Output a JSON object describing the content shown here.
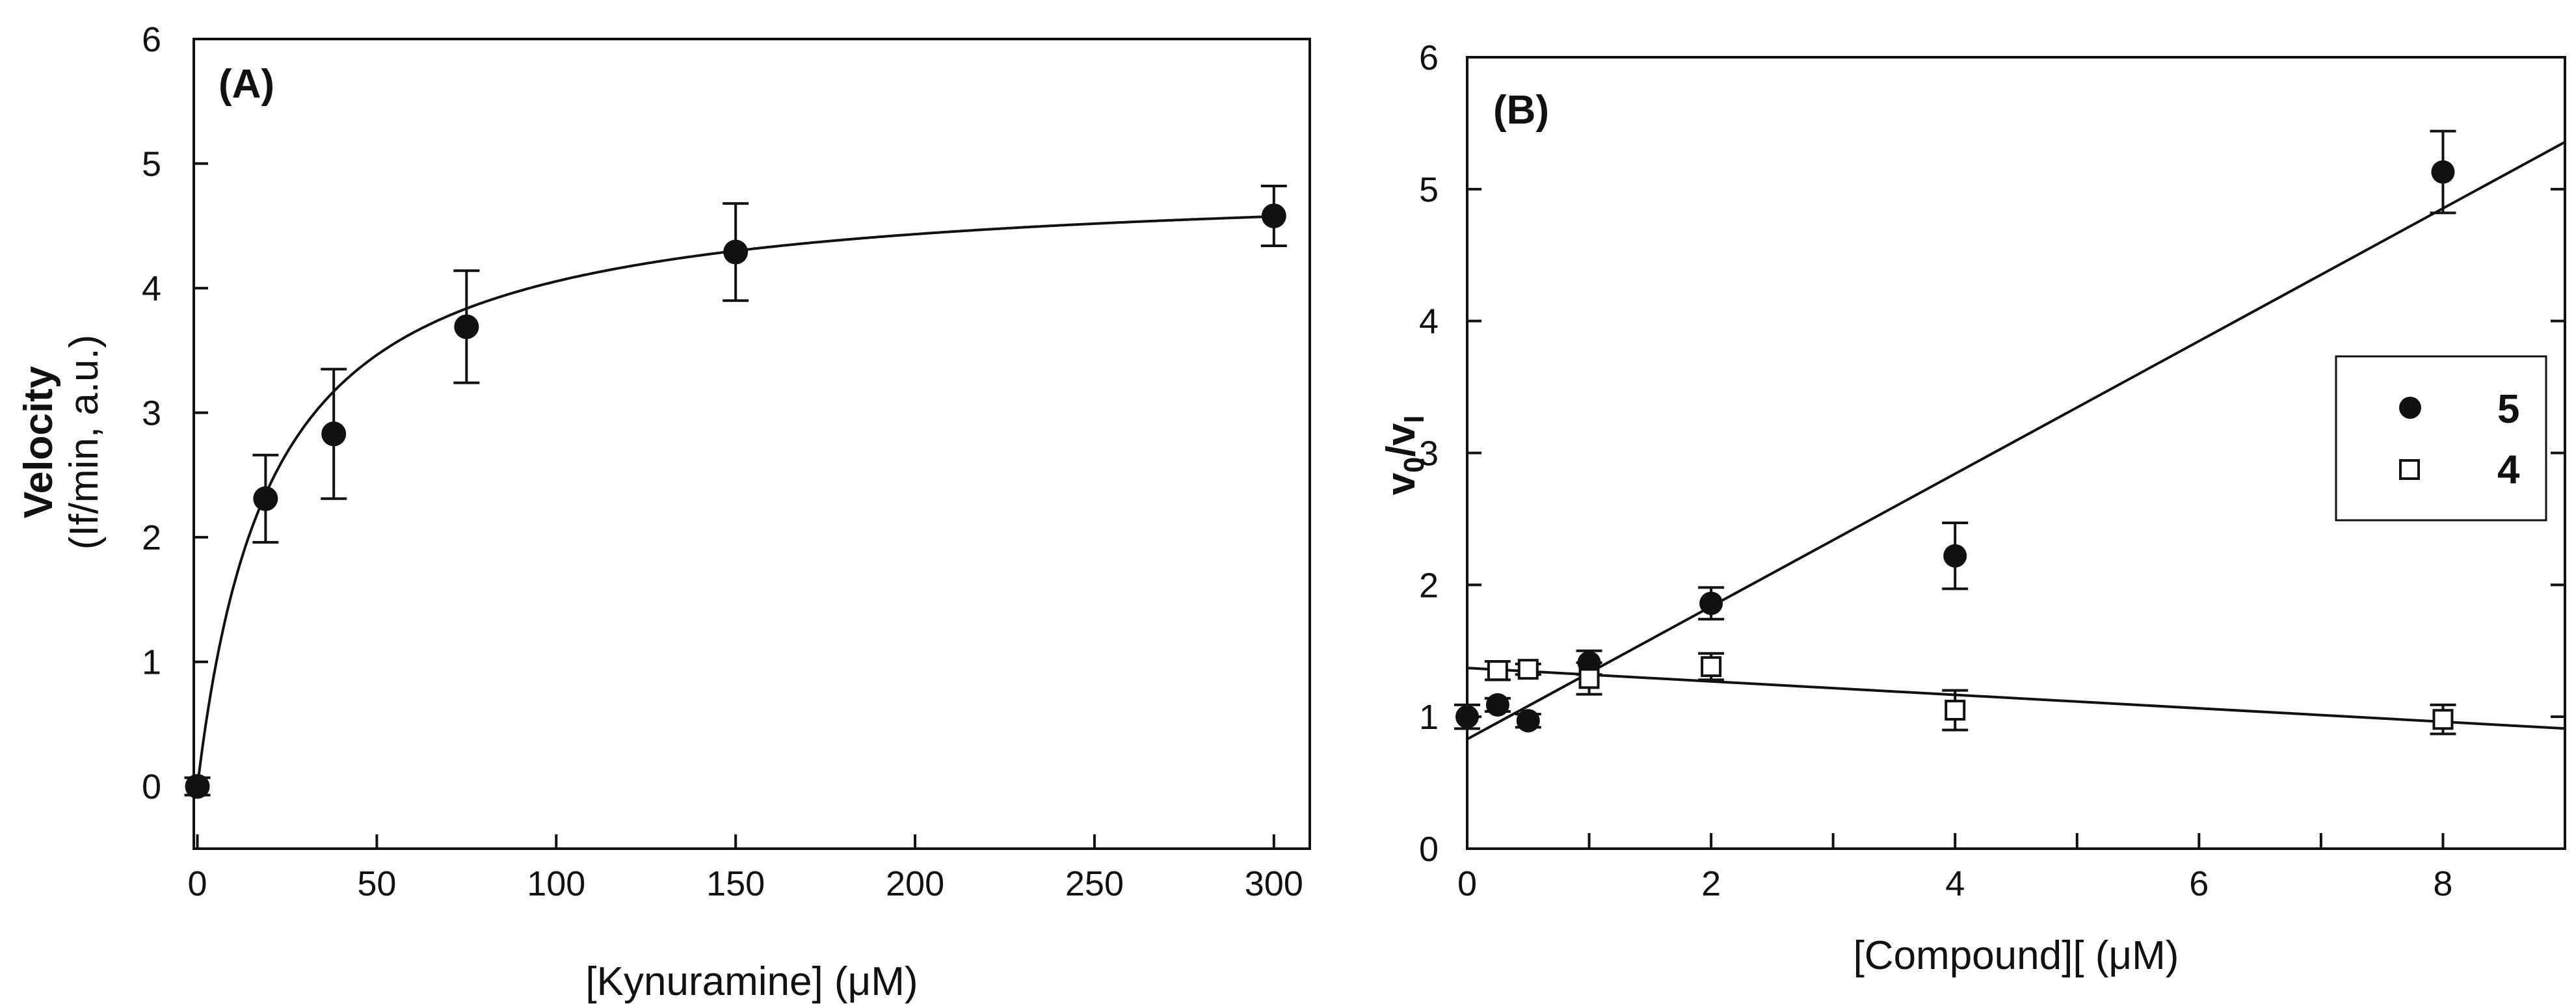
{
  "chart_data": [
    {
      "panel": "(A)",
      "type": "scatter",
      "xlabel": "[Kynuramine] (μM)",
      "ylabel": "Velocity",
      "ylabel_sub": "(If/min, a.u.)",
      "xlim": [
        -1,
        310
      ],
      "ylim": [
        -0.5,
        6
      ],
      "xticks": [
        0,
        50,
        100,
        150,
        200,
        250,
        300
      ],
      "yticks": [
        0,
        1,
        2,
        3,
        4,
        5,
        6
      ],
      "x": [
        0,
        19,
        38,
        75,
        150,
        300
      ],
      "y": [
        0,
        2.31,
        2.83,
        3.69,
        4.29,
        4.58
      ],
      "err": [
        0.07,
        0.35,
        0.52,
        0.45,
        0.39,
        0.24
      ],
      "fit": {
        "model": "michaelis-menten",
        "vmax": 4.89,
        "km": 20.6
      }
    },
    {
      "panel": "(B)",
      "type": "scatter",
      "xlabel": "[Compound][ (μM)",
      "ylabel": "v0/vI",
      "xlim": [
        0,
        9
      ],
      "ylim": [
        0,
        6
      ],
      "xticks_major": [
        0,
        2,
        4,
        6,
        8
      ],
      "xticks_minor": [
        1,
        3,
        5,
        7,
        9
      ],
      "yticks": [
        0,
        1,
        2,
        3,
        4,
        5,
        6
      ],
      "series": [
        {
          "name": "5",
          "marker": "filled-circle",
          "x": [
            0,
            0.25,
            0.5,
            1,
            2,
            4,
            8
          ],
          "y": [
            1.0,
            1.09,
            0.97,
            1.41,
            1.86,
            2.22,
            5.13
          ],
          "err": [
            0.09,
            0.05,
            0.05,
            0.09,
            0.12,
            0.25,
            0.31
          ],
          "fit": {
            "intercept": 0.83,
            "slope": 0.503
          }
        },
        {
          "name": "4",
          "marker": "open-square",
          "x": [
            0.25,
            0.5,
            1,
            2,
            4,
            8
          ],
          "y": [
            1.35,
            1.36,
            1.29,
            1.38,
            1.05,
            0.98
          ],
          "err": [
            0.07,
            0.04,
            0.12,
            0.1,
            0.15,
            0.11
          ],
          "fit": {
            "intercept": 1.37,
            "slope": -0.051
          }
        }
      ]
    }
  ]
}
